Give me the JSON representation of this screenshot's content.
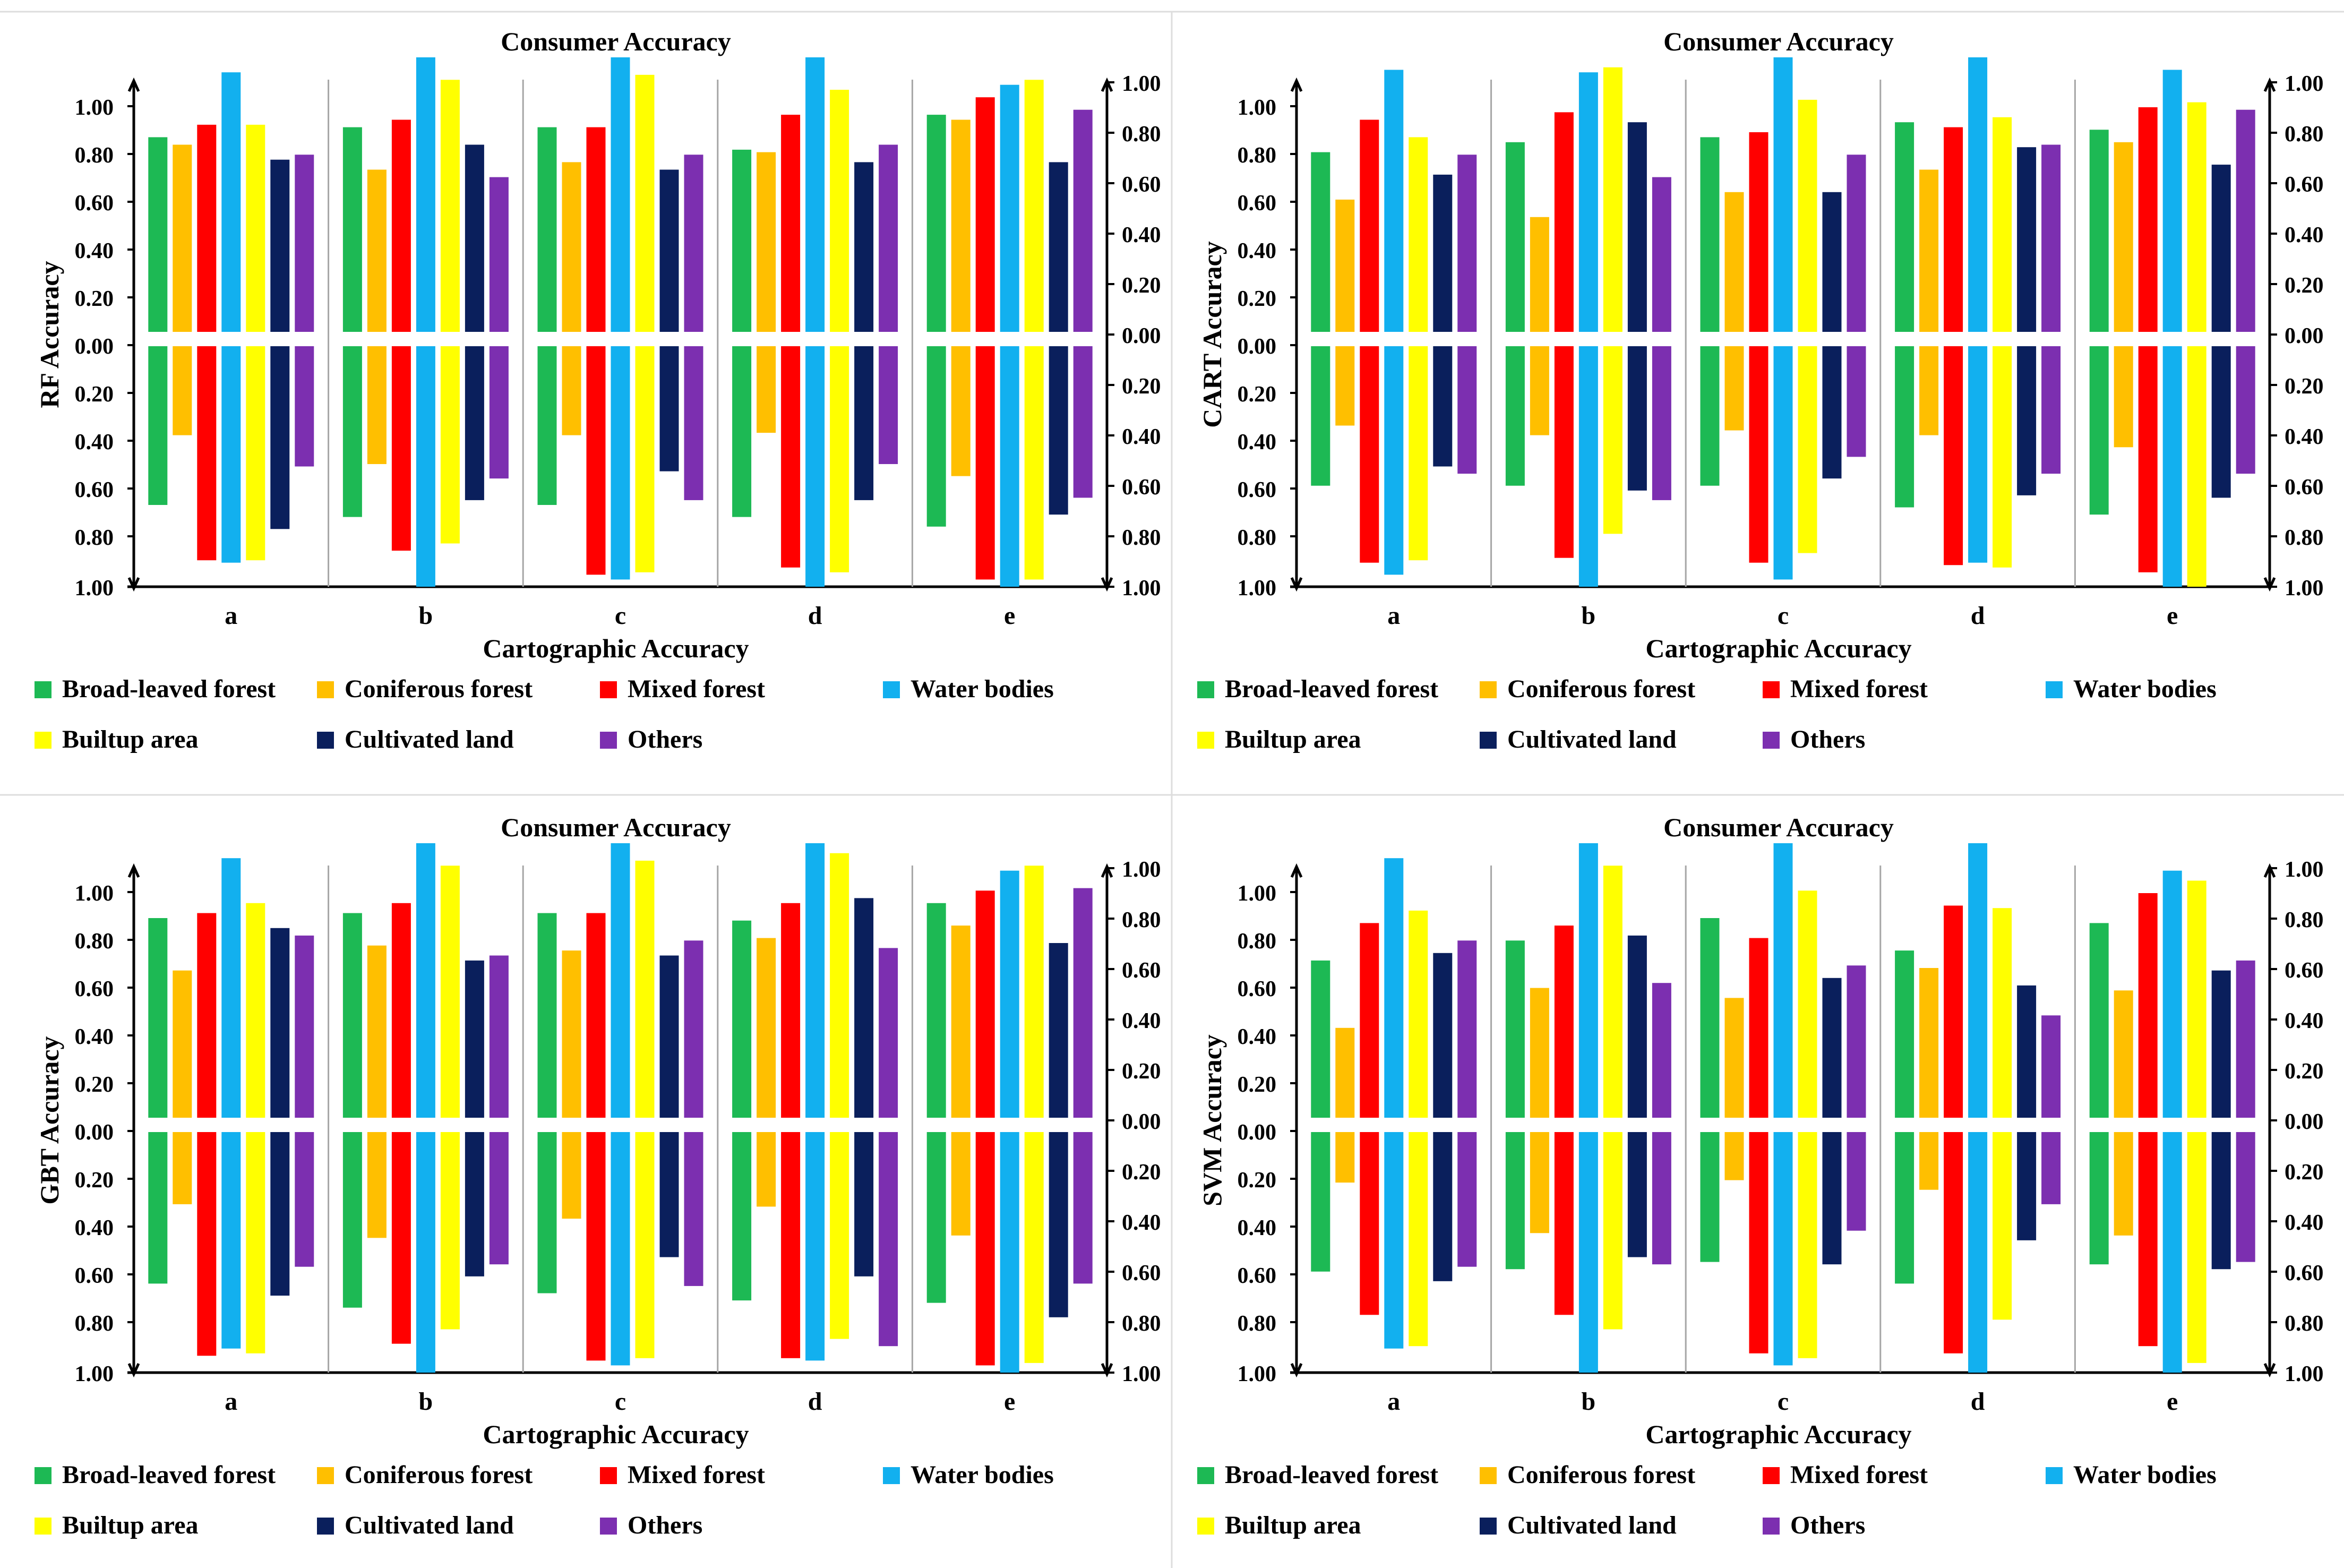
{
  "legend": [
    {
      "label": "Broad-leaved forest",
      "color": "#1db954"
    },
    {
      "label": "Coniferous forest",
      "color": "#ffbf00"
    },
    {
      "label": "Mixed forest",
      "color": "#ff0000"
    },
    {
      "label": "Water bodies",
      "color": "#12b0ef"
    },
    {
      "label": "Builtup area",
      "color": "#ffff00"
    },
    {
      "label": "Cultivated land",
      "color": "#0a1f5c"
    },
    {
      "label": "Others",
      "color": "#7c2fb0"
    }
  ],
  "chart_data": [
    {
      "type": "bar",
      "title": "Consumer Accuracy",
      "xlabel": "Cartographic Accuracy",
      "ylabel": "RF Accuracy",
      "categories": [
        "a",
        "b",
        "c",
        "d",
        "e"
      ],
      "y_ticks_left": [
        "1.00",
        "0.80",
        "0.60",
        "0.40",
        "0.20",
        "0.00",
        "0.20",
        "0.40",
        "0.60",
        "0.80",
        "1.00"
      ],
      "y_ticks_right": [
        "1.00",
        "0.80",
        "0.60",
        "0.40",
        "0.20",
        "0.00",
        "0.20",
        "0.40",
        "0.60",
        "0.80",
        "1.00"
      ],
      "ylim_upper": [
        0,
        1.0
      ],
      "ylim_lower": [
        0,
        1.0
      ],
      "upper": [
        [
          0.78,
          0.75,
          0.83,
          1.04,
          0.83,
          0.69,
          0.71
        ],
        [
          0.82,
          0.65,
          0.85,
          1.1,
          1.01,
          0.75,
          0.62
        ],
        [
          0.82,
          0.68,
          0.82,
          1.1,
          1.03,
          0.65,
          0.71
        ],
        [
          0.73,
          0.72,
          0.87,
          1.1,
          0.97,
          0.68,
          0.75
        ],
        [
          0.87,
          0.85,
          0.94,
          0.99,
          1.01,
          0.68,
          0.89
        ]
      ],
      "lower": [
        [
          0.66,
          0.37,
          0.89,
          0.9,
          0.89,
          0.76,
          0.5
        ],
        [
          0.71,
          0.49,
          0.85,
          1.0,
          0.82,
          0.64,
          0.55
        ],
        [
          0.66,
          0.37,
          0.95,
          0.97,
          0.94,
          0.52,
          0.64
        ],
        [
          0.71,
          0.36,
          0.92,
          1.0,
          0.94,
          0.64,
          0.49
        ],
        [
          0.75,
          0.54,
          0.97,
          1.0,
          0.97,
          0.7,
          0.63
        ]
      ]
    },
    {
      "type": "bar",
      "title": "Consumer Accuracy",
      "xlabel": "Cartographic Accuracy",
      "ylabel": "CART Accuracy",
      "categories": [
        "a",
        "b",
        "c",
        "d",
        "e"
      ],
      "y_ticks_left": [
        "1.00",
        "0.80",
        "0.60",
        "0.40",
        "0.20",
        "0.00",
        "0.20",
        "0.40",
        "0.60",
        "0.80",
        "1.00"
      ],
      "y_ticks_right": [
        "1.00",
        "0.80",
        "0.60",
        "0.40",
        "0.20",
        "0.00",
        "0.20",
        "0.40",
        "0.60",
        "0.80",
        "1.00"
      ],
      "ylim_upper": [
        0,
        1.0
      ],
      "ylim_lower": [
        0,
        1.0
      ],
      "upper": [
        [
          0.72,
          0.53,
          0.85,
          1.05,
          0.78,
          0.63,
          0.71
        ],
        [
          0.76,
          0.46,
          0.88,
          1.04,
          1.06,
          0.84,
          0.62
        ],
        [
          0.78,
          0.56,
          0.8,
          1.1,
          0.93,
          0.56,
          0.71
        ],
        [
          0.84,
          0.65,
          0.82,
          1.1,
          0.86,
          0.74,
          0.75
        ],
        [
          0.81,
          0.76,
          0.9,
          1.05,
          0.92,
          0.67,
          0.89
        ]
      ],
      "lower": [
        [
          0.58,
          0.33,
          0.9,
          0.95,
          0.89,
          0.5,
          0.53
        ],
        [
          0.58,
          0.37,
          0.88,
          1.0,
          0.78,
          0.6,
          0.64
        ],
        [
          0.58,
          0.35,
          0.9,
          0.97,
          0.86,
          0.55,
          0.46
        ],
        [
          0.67,
          0.37,
          0.91,
          0.9,
          0.92,
          0.62,
          0.53
        ],
        [
          0.7,
          0.42,
          0.94,
          1.0,
          1.0,
          0.63,
          0.53
        ]
      ]
    },
    {
      "type": "bar",
      "title": "Consumer Accuracy",
      "xlabel": "Cartographic Accuracy",
      "ylabel": "GBT Accuracy",
      "categories": [
        "a",
        "b",
        "c",
        "d",
        "e"
      ],
      "y_ticks_left": [
        "1.00",
        "0.80",
        "0.60",
        "0.40",
        "0.20",
        "0.00",
        "0.20",
        "0.40",
        "0.60",
        "0.80",
        "1.00"
      ],
      "y_ticks_right": [
        "1.00",
        "0.80",
        "0.60",
        "0.40",
        "0.20",
        "0.00",
        "0.20",
        "0.40",
        "0.60",
        "0.80",
        "1.00"
      ],
      "ylim_upper": [
        0,
        1.0
      ],
      "ylim_lower": [
        0,
        1.0
      ],
      "upper": [
        [
          0.8,
          0.59,
          0.82,
          1.04,
          0.86,
          0.76,
          0.73
        ],
        [
          0.82,
          0.69,
          0.86,
          1.1,
          1.01,
          0.63,
          0.65
        ],
        [
          0.82,
          0.67,
          0.82,
          1.1,
          1.03,
          0.65,
          0.71
        ],
        [
          0.79,
          0.72,
          0.86,
          1.1,
          1.06,
          0.88,
          0.68
        ],
        [
          0.86,
          0.77,
          0.91,
          0.99,
          1.01,
          0.7,
          0.92
        ]
      ],
      "lower": [
        [
          0.63,
          0.3,
          0.93,
          0.9,
          0.92,
          0.68,
          0.56
        ],
        [
          0.73,
          0.44,
          0.88,
          1.0,
          0.82,
          0.6,
          0.55
        ],
        [
          0.67,
          0.36,
          0.95,
          0.97,
          0.94,
          0.52,
          0.64
        ],
        [
          0.7,
          0.31,
          0.94,
          0.95,
          0.86,
          0.6,
          0.89
        ],
        [
          0.71,
          0.43,
          0.97,
          1.0,
          0.96,
          0.77,
          0.63
        ]
      ]
    },
    {
      "type": "bar",
      "title": "Consumer Accuracy",
      "xlabel": "Cartographic Accuracy",
      "ylabel": "SVM Accuracy",
      "categories": [
        "a",
        "b",
        "c",
        "d",
        "e"
      ],
      "y_ticks_left": [
        "1.00",
        "0.80",
        "0.60",
        "0.40",
        "0.20",
        "0.00",
        "0.20",
        "0.40",
        "0.60",
        "0.80",
        "1.00"
      ],
      "y_ticks_right": [
        "1.00",
        "0.80",
        "0.60",
        "0.40",
        "0.20",
        "0.00",
        "0.20",
        "0.40",
        "0.60",
        "0.80",
        "1.00"
      ],
      "ylim_upper": [
        0,
        1.0
      ],
      "ylim_lower": [
        0,
        1.0
      ],
      "upper": [
        [
          0.63,
          0.36,
          0.78,
          1.04,
          0.83,
          0.66,
          0.71
        ],
        [
          0.71,
          0.52,
          0.77,
          1.1,
          1.01,
          0.73,
          0.54
        ],
        [
          0.8,
          0.48,
          0.72,
          1.1,
          0.91,
          0.56,
          0.61
        ],
        [
          0.67,
          0.6,
          0.85,
          1.1,
          0.84,
          0.53,
          0.41
        ],
        [
          0.78,
          0.51,
          0.9,
          0.99,
          0.95,
          0.59,
          0.63
        ]
      ],
      "lower": [
        [
          0.58,
          0.21,
          0.76,
          0.9,
          0.89,
          0.62,
          0.56
        ],
        [
          0.57,
          0.42,
          0.76,
          1.0,
          0.82,
          0.52,
          0.55
        ],
        [
          0.54,
          0.2,
          0.92,
          0.97,
          0.94,
          0.55,
          0.41
        ],
        [
          0.63,
          0.24,
          0.92,
          1.0,
          0.78,
          0.45,
          0.3
        ],
        [
          0.55,
          0.43,
          0.89,
          1.0,
          0.96,
          0.57,
          0.54
        ]
      ]
    }
  ]
}
